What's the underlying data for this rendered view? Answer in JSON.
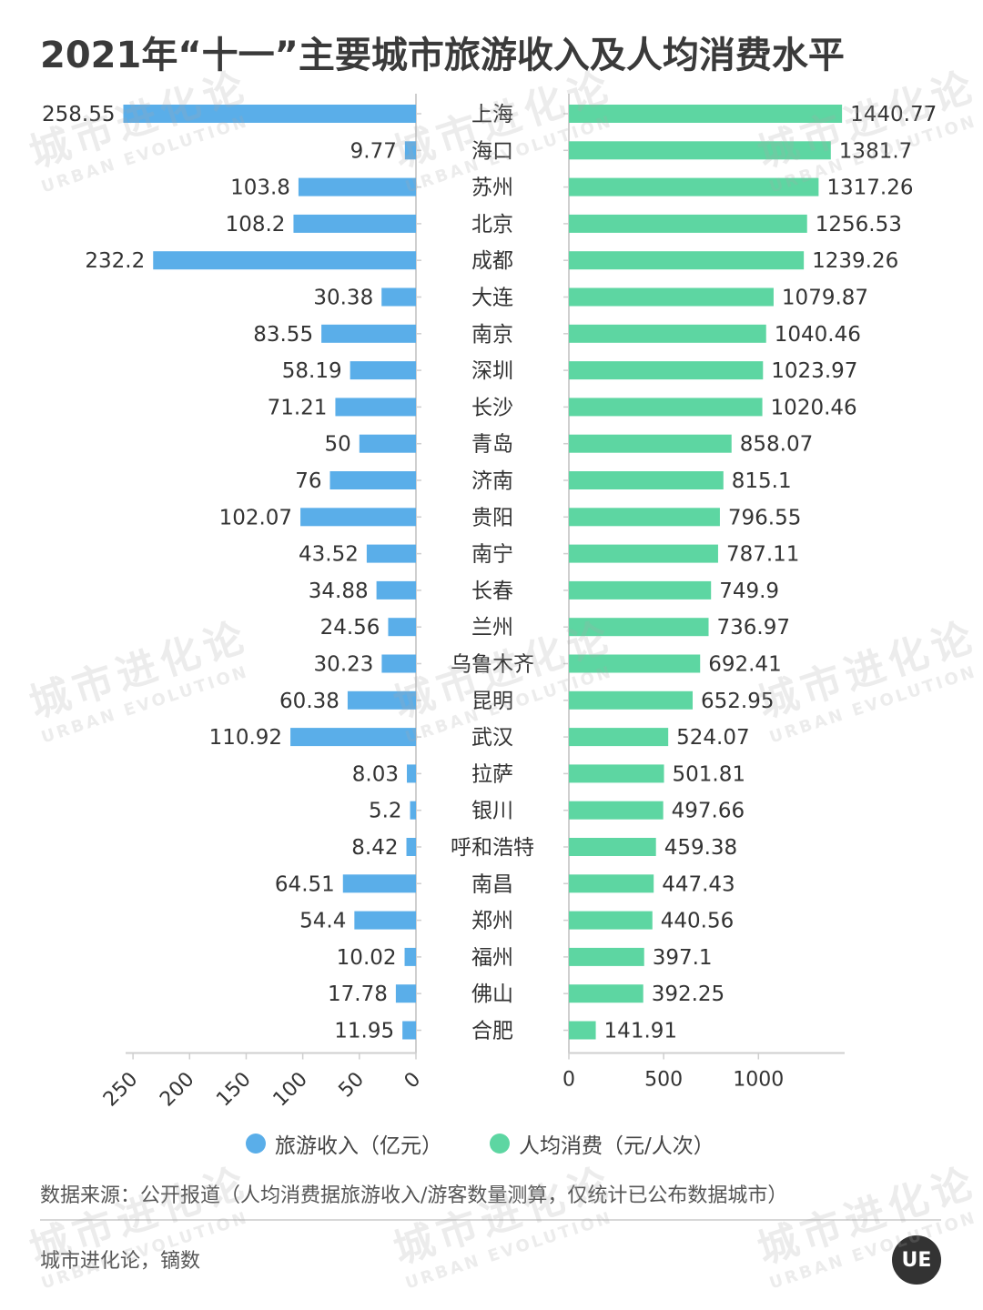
{
  "title": "2021年“十一”主要城市旅游收入及人均消费水平",
  "colors": {
    "income": "#5aaee9",
    "spending": "#5dd6a2",
    "axis": "#cfcfcf",
    "text": "#333333"
  },
  "chart_data": {
    "type": "bar",
    "orientation": "horizontal",
    "categories": [
      "上海",
      "海口",
      "苏州",
      "北京",
      "成都",
      "大连",
      "南京",
      "深圳",
      "长沙",
      "青岛",
      "济南",
      "贵阳",
      "南宁",
      "长春",
      "兰州",
      "乌鲁木齐",
      "昆明",
      "武汉",
      "拉萨",
      "银川",
      "呼和浩特",
      "南昌",
      "郑州",
      "福州",
      "佛山",
      "合肥"
    ],
    "series": [
      {
        "name": "旅游收入（亿元）",
        "values": [
          258.55,
          9.77,
          103.8,
          108.2,
          232.2,
          30.38,
          83.55,
          58.19,
          71.21,
          50,
          76,
          102.07,
          43.52,
          34.88,
          24.56,
          30.23,
          60.38,
          110.92,
          8.03,
          5.2,
          8.42,
          64.51,
          54.4,
          10.02,
          17.78,
          11.95
        ],
        "labels": [
          "258.55",
          "9.77",
          "103.8",
          "108.2",
          "232.2",
          "30.38",
          "83.55",
          "58.19",
          "71.21",
          "50",
          "76",
          "102.07",
          "43.52",
          "34.88",
          "24.56",
          "30.23",
          "60.38",
          "110.92",
          "8.03",
          "5.2",
          "8.42",
          "64.51",
          "54.4",
          "10.02",
          "17.78",
          "11.95"
        ],
        "xlim": [
          0,
          260
        ],
        "ticks": [
          250,
          200,
          150,
          100,
          50,
          0
        ],
        "direction": "reversed"
      },
      {
        "name": "人均消费（元/人次）",
        "values": [
          1440.77,
          1381.7,
          1317.26,
          1256.53,
          1239.26,
          1079.87,
          1040.46,
          1023.97,
          1020.46,
          858.07,
          815.1,
          796.55,
          787.11,
          749.9,
          736.97,
          692.41,
          652.95,
          524.07,
          501.81,
          497.66,
          459.38,
          447.43,
          440.56,
          397.1,
          392.25,
          141.91
        ],
        "labels": [
          "1440.77",
          "1381.7",
          "1317.26",
          "1256.53",
          "1239.26",
          "1079.87",
          "1040.46",
          "1023.97",
          "1020.46",
          "858.07",
          "815.1",
          "796.55",
          "787.11",
          "749.9",
          "736.97",
          "692.41",
          "652.95",
          "524.07",
          "501.81",
          "497.66",
          "459.38",
          "447.43",
          "440.56",
          "397.1",
          "392.25",
          "141.91"
        ],
        "xlim": [
          0,
          1450
        ],
        "ticks": [
          0,
          500,
          1000
        ]
      }
    ],
    "legend_position": "bottom",
    "grid": false
  },
  "legend": {
    "income": "旅游收入（亿元）",
    "spending": "人均消费（元/人次）"
  },
  "source": "数据来源：公开报道（人均消费据旅游收入/游客数量测算，仅统计已公布数据城市）",
  "credit": "城市进化论，镝数",
  "logo_text": "UE",
  "watermark": {
    "cn": "城市进化论",
    "en": "URBAN EVOLUTION"
  }
}
